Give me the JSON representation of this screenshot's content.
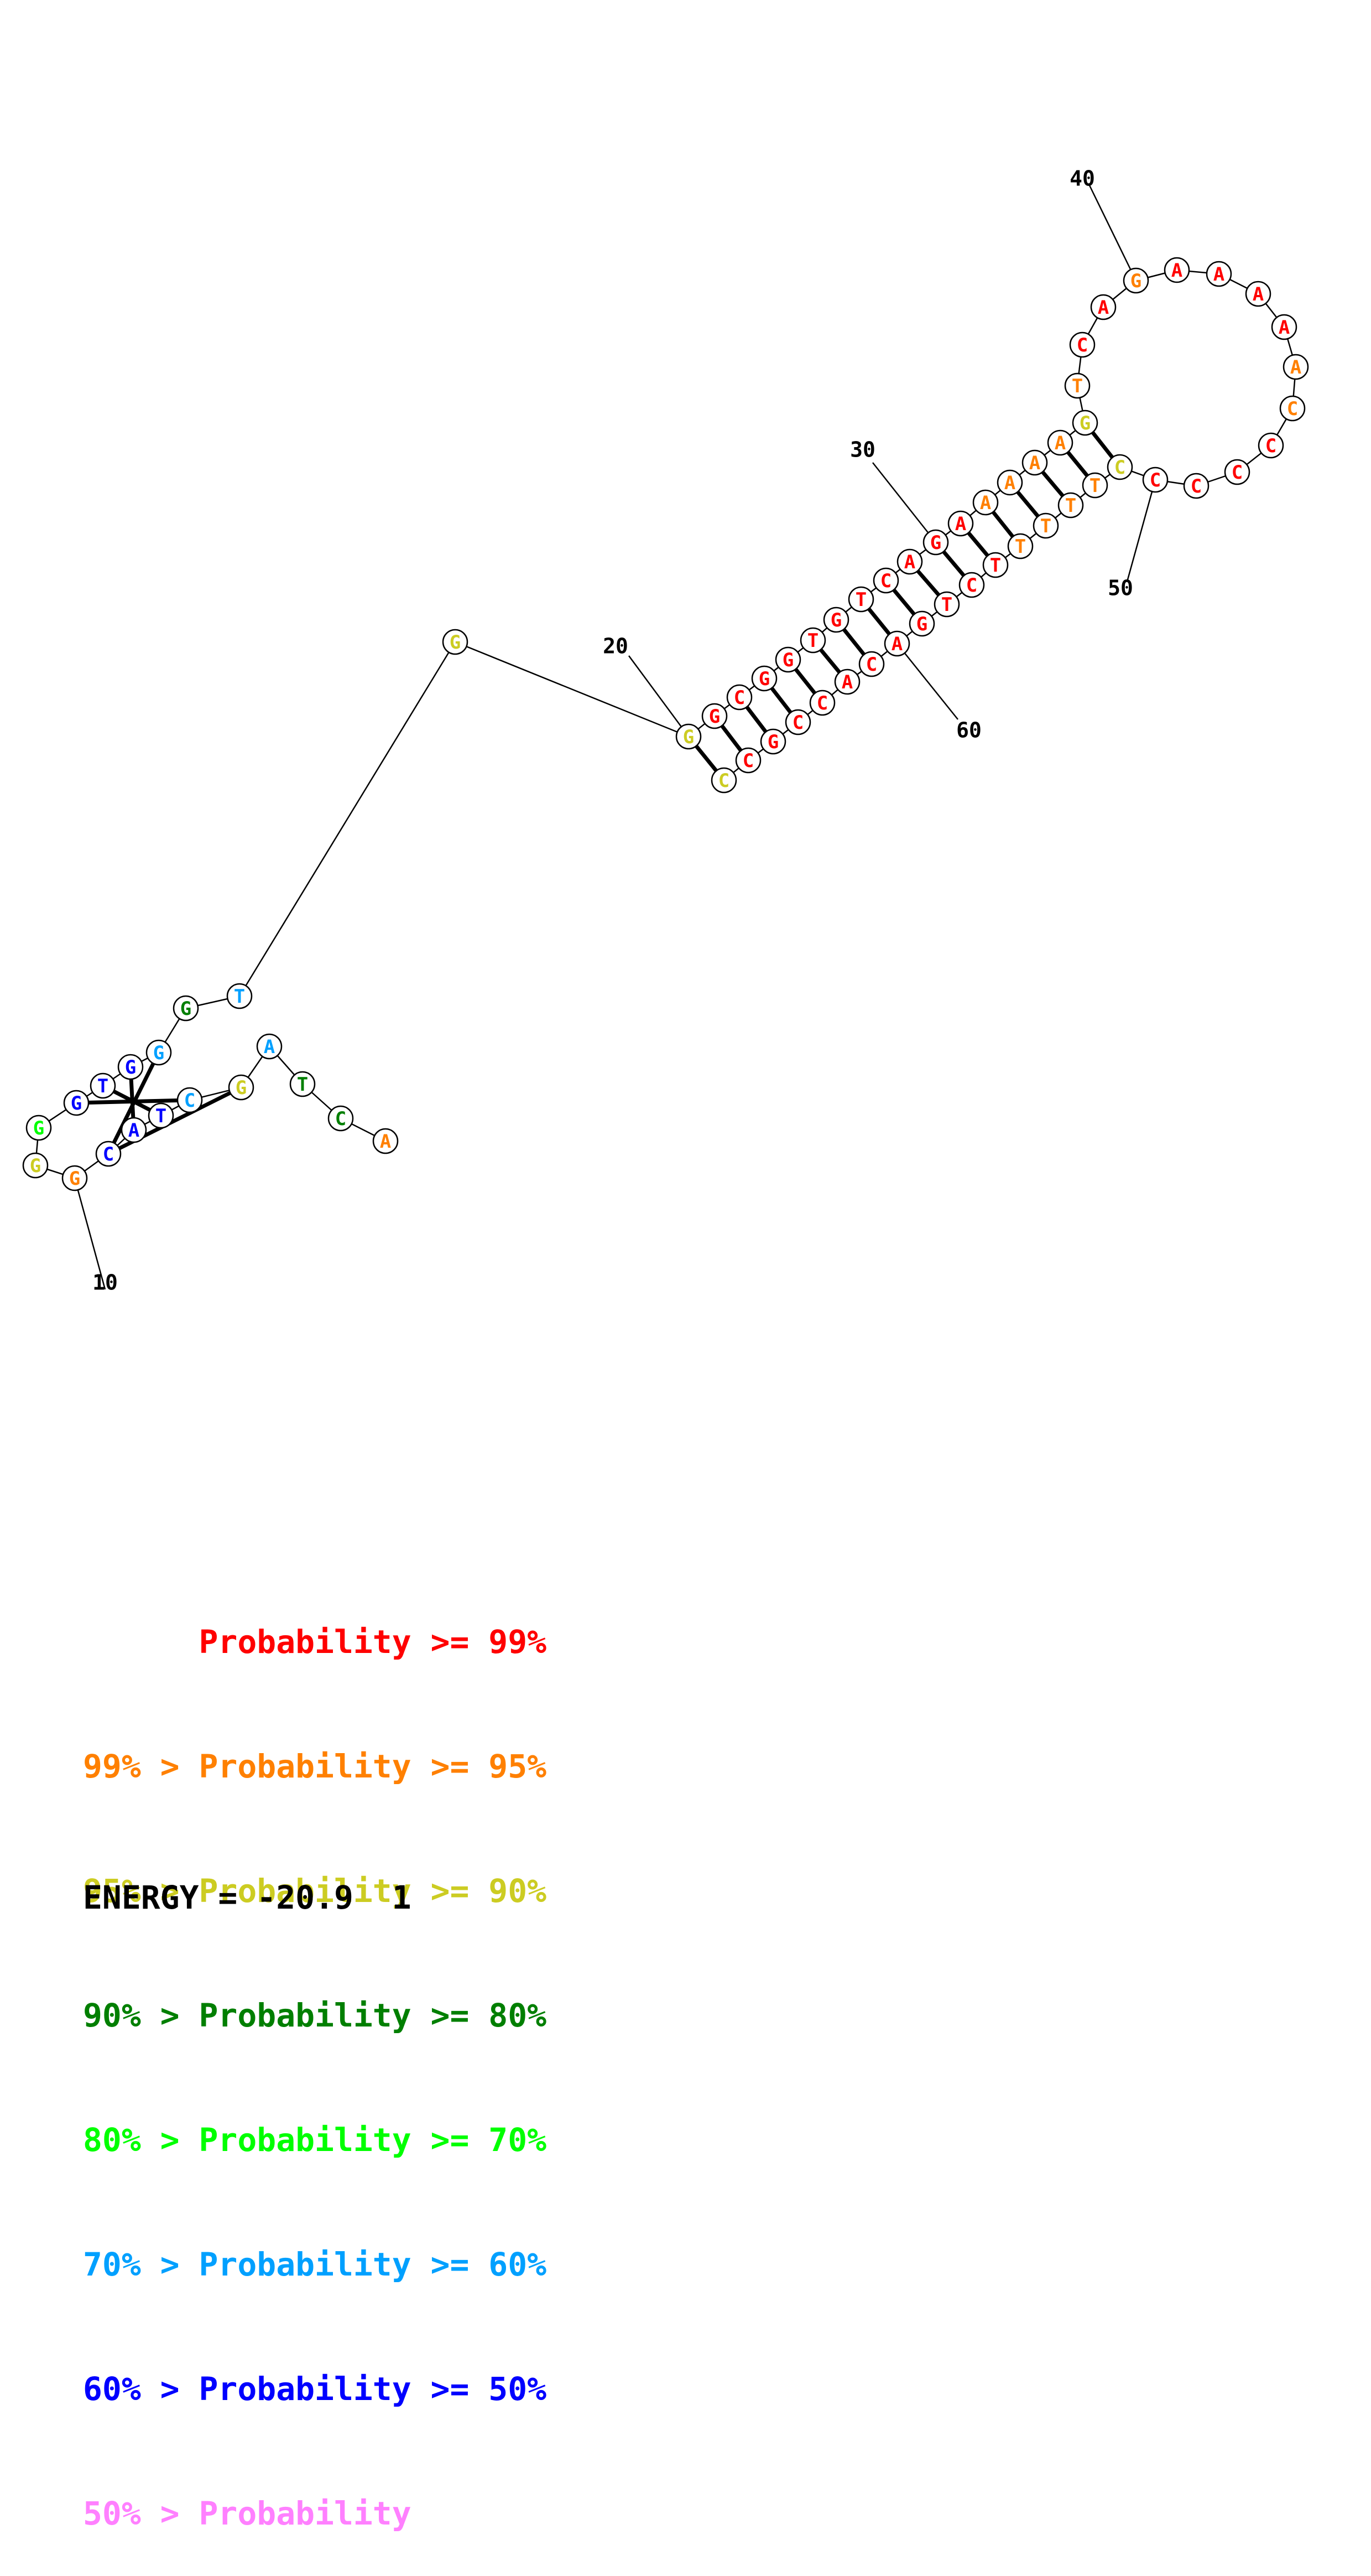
{
  "nucleotides": [
    {
      "n": 1,
      "base": "A",
      "level": 1
    },
    {
      "n": 2,
      "base": "C",
      "level": 3
    },
    {
      "n": 3,
      "base": "T",
      "level": 3
    },
    {
      "n": 4,
      "base": "A",
      "level": 5
    },
    {
      "n": 5,
      "base": "G",
      "level": 2
    },
    {
      "n": 6,
      "base": "C",
      "level": 5
    },
    {
      "n": 7,
      "base": "T",
      "level": 6
    },
    {
      "n": 8,
      "base": "A",
      "level": 6
    },
    {
      "n": 9,
      "base": "C",
      "level": 6
    },
    {
      "n": 10,
      "base": "G",
      "level": 1
    },
    {
      "n": 11,
      "base": "G",
      "level": 2
    },
    {
      "n": 12,
      "base": "G",
      "level": 4
    },
    {
      "n": 13,
      "base": "G",
      "level": 6
    },
    {
      "n": 14,
      "base": "T",
      "level": 6
    },
    {
      "n": 15,
      "base": "G",
      "level": 6
    },
    {
      "n": 16,
      "base": "G",
      "level": 5
    },
    {
      "n": 17,
      "base": "G",
      "level": 3
    },
    {
      "n": 18,
      "base": "T",
      "level": 5
    },
    {
      "n": 19,
      "base": "G",
      "level": 2
    },
    {
      "n": 20,
      "base": "G",
      "level": 2
    },
    {
      "n": 21,
      "base": "G",
      "level": 0
    },
    {
      "n": 22,
      "base": "C",
      "level": 0
    },
    {
      "n": 23,
      "base": "G",
      "level": 0
    },
    {
      "n": 24,
      "base": "G",
      "level": 0
    },
    {
      "n": 25,
      "base": "T",
      "level": 0
    },
    {
      "n": 26,
      "base": "G",
      "level": 0
    },
    {
      "n": 27,
      "base": "T",
      "level": 0
    },
    {
      "n": 28,
      "base": "C",
      "level": 0
    },
    {
      "n": 29,
      "base": "A",
      "level": 0
    },
    {
      "n": 30,
      "base": "G",
      "level": 0
    },
    {
      "n": 31,
      "base": "A",
      "level": 0
    },
    {
      "n": 32,
      "base": "A",
      "level": 1
    },
    {
      "n": 33,
      "base": "A",
      "level": 1
    },
    {
      "n": 34,
      "base": "A",
      "level": 1
    },
    {
      "n": 35,
      "base": "A",
      "level": 1
    },
    {
      "n": 36,
      "base": "G",
      "level": 2
    },
    {
      "n": 37,
      "base": "T",
      "level": 1
    },
    {
      "n": 38,
      "base": "C",
      "level": 0
    },
    {
      "n": 39,
      "base": "A",
      "level": 0
    },
    {
      "n": 40,
      "base": "G",
      "level": 1
    },
    {
      "n": 41,
      "base": "A",
      "level": 0
    },
    {
      "n": 42,
      "base": "A",
      "level": 0
    },
    {
      "n": 43,
      "base": "A",
      "level": 0
    },
    {
      "n": 44,
      "base": "A",
      "level": 0
    },
    {
      "n": 45,
      "base": "A",
      "level": 1
    },
    {
      "n": 46,
      "base": "C",
      "level": 1
    },
    {
      "n": 47,
      "base": "C",
      "level": 0
    },
    {
      "n": 48,
      "base": "C",
      "level": 0
    },
    {
      "n": 49,
      "base": "C",
      "level": 0
    },
    {
      "n": 50,
      "base": "C",
      "level": 0
    },
    {
      "n": 51,
      "base": "C",
      "level": 2
    },
    {
      "n": 52,
      "base": "T",
      "level": 1
    },
    {
      "n": 53,
      "base": "T",
      "level": 1
    },
    {
      "n": 54,
      "base": "T",
      "level": 1
    },
    {
      "n": 55,
      "base": "T",
      "level": 1
    },
    {
      "n": 56,
      "base": "T",
      "level": 0
    },
    {
      "n": 57,
      "base": "C",
      "level": 0
    },
    {
      "n": 58,
      "base": "T",
      "level": 0
    },
    {
      "n": 59,
      "base": "G",
      "level": 0
    },
    {
      "n": 60,
      "base": "A",
      "level": 0
    },
    {
      "n": 61,
      "base": "C",
      "level": 0
    },
    {
      "n": 62,
      "base": "A",
      "level": 0
    },
    {
      "n": 63,
      "base": "C",
      "level": 0
    },
    {
      "n": 64,
      "base": "C",
      "level": 0
    },
    {
      "n": 65,
      "base": "G",
      "level": 0
    },
    {
      "n": 66,
      "base": "C",
      "level": 0
    },
    {
      "n": 67,
      "base": "C",
      "level": 2
    }
  ],
  "pairs": [
    [
      5,
      9
    ],
    [
      6,
      13
    ],
    [
      7,
      14
    ],
    [
      8,
      15
    ],
    [
      9,
      16
    ],
    [
      20,
      67
    ],
    [
      21,
      66
    ],
    [
      22,
      65
    ],
    [
      23,
      64
    ],
    [
      24,
      63
    ],
    [
      25,
      62
    ],
    [
      26,
      61
    ],
    [
      27,
      60
    ],
    [
      28,
      59
    ],
    [
      29,
      58
    ],
    [
      30,
      57
    ],
    [
      31,
      56
    ],
    [
      32,
      55
    ],
    [
      33,
      54
    ],
    [
      34,
      53
    ],
    [
      35,
      52
    ],
    [
      36,
      51
    ]
  ],
  "position_labels": [
    {
      "n": 10,
      "text": "10"
    },
    {
      "n": 20,
      "text": "20"
    },
    {
      "n": 30,
      "text": "30"
    },
    {
      "n": 40,
      "text": "40"
    },
    {
      "n": 50,
      "text": "50"
    },
    {
      "n": 60,
      "text": "60"
    }
  ],
  "colors": [
    "#ff0000",
    "#ff8000",
    "#cccc22",
    "#007f00",
    "#00ff00",
    "#00a0ff",
    "#0000ff",
    "#ff80ff"
  ],
  "legend": [
    {
      "text": "      Probability >= 99%",
      "color": "#ff0000"
    },
    {
      "text": "99% > Probability >= 95%",
      "color": "#ff8000"
    },
    {
      "text": "95% > Probability >= 90%",
      "color": "#cccc22"
    },
    {
      "text": "90% > Probability >= 80%",
      "color": "#007f00"
    },
    {
      "text": "80% > Probability >= 70%",
      "color": "#00ff00"
    },
    {
      "text": "70% > Probability >= 60%",
      "color": "#00a0ff"
    },
    {
      "text": "60% > Probability >= 50%",
      "color": "#0000ff"
    },
    {
      "text": "50% > Probability",
      "color": "#ff80ff"
    }
  ],
  "energy": "ENERGY = -20.9  1"
}
